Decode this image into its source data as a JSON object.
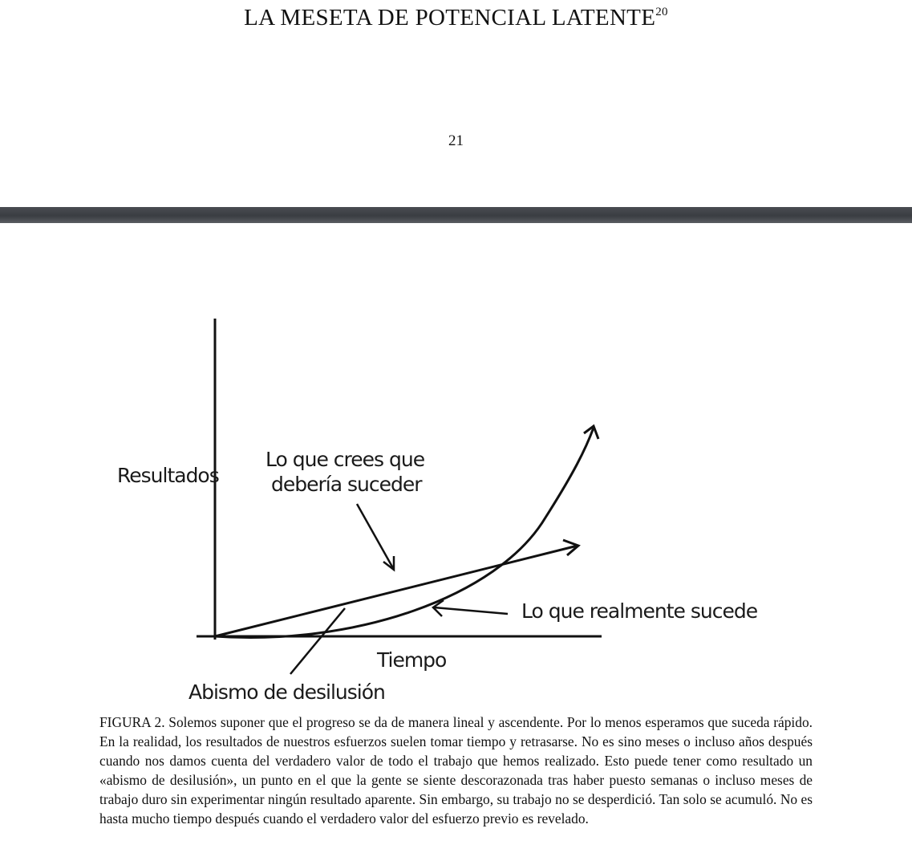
{
  "page": {
    "heading": "LA MESETA DE POTENCIAL LATENTE",
    "footnote_ref": "20",
    "page_number": "21"
  },
  "figure": {
    "y_axis_label": "Resultados",
    "x_axis_label": "Tiempo",
    "expectation_label_line1": "Lo que crees que",
    "expectation_label_line2": "debería suceder",
    "reality_label": "Lo que realmente sucede",
    "valley_label": "Abismo de desilusión"
  },
  "caption": {
    "text": "FIGURA 2. Solemos suponer que el progreso se da de manera lineal y ascendente. Por lo menos esperamos que suceda rápido. En la realidad, los resultados de nuestros esfuerzos suelen tomar tiempo y retrasarse. No es sino meses o incluso años después cuando nos damos cuenta del verdadero valor de todo el trabajo que hemos realizado. Esto puede tener como resultado un «abismo de desilusión», un punto en el que la gente se siente descorazonada tras haber puesto semanas o incluso meses de trabajo duro sin experimentar ningún resultado aparente. Sin embargo, su trabajo no se desperdició. Tan solo se acumuló. No es hasta mucho tiempo después cuando el verdadero valor del esfuerzo previo es revelado."
  }
}
